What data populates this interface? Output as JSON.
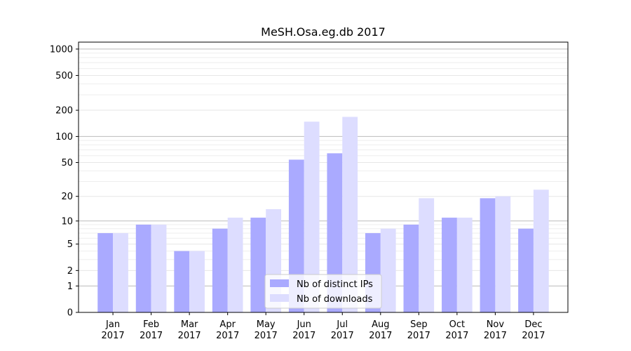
{
  "chart_data": {
    "type": "bar",
    "title": "MeSH.Osa.eg.db 2017",
    "xlabel": "",
    "ylabel": "",
    "yscale": "log(1+y)",
    "ylim": [
      0,
      1200
    ],
    "yticks": [
      0,
      1,
      2,
      5,
      10,
      20,
      50,
      100,
      200,
      500,
      1000
    ],
    "categories": [
      "Jan\n2017",
      "Feb\n2017",
      "Mar\n2017",
      "Apr\n2017",
      "May\n2017",
      "Jun\n2017",
      "Jul\n2017",
      "Aug\n2017",
      "Sep\n2017",
      "Oct\n2017",
      "Nov\n2017",
      "Dec\n2017"
    ],
    "category_lines": [
      [
        "Jan",
        "2017"
      ],
      [
        "Feb",
        "2017"
      ],
      [
        "Mar",
        "2017"
      ],
      [
        "Apr",
        "2017"
      ],
      [
        "May",
        "2017"
      ],
      [
        "Jun",
        "2017"
      ],
      [
        "Jul",
        "2017"
      ],
      [
        "Aug",
        "2017"
      ],
      [
        "Sep",
        "2017"
      ],
      [
        "Oct",
        "2017"
      ],
      [
        "Nov",
        "2017"
      ],
      [
        "Dec",
        "2017"
      ]
    ],
    "series": [
      {
        "name": "Nb of distinct IPs",
        "color": "#aaaaff",
        "values": [
          7,
          9,
          4,
          8,
          11,
          54,
          64,
          7,
          9,
          11,
          19,
          8
        ]
      },
      {
        "name": "Nb of downloads",
        "color": "#ddddff",
        "values": [
          7,
          9,
          4,
          11,
          14,
          148,
          168,
          8,
          19,
          11,
          20,
          24
        ]
      }
    ],
    "grid": true,
    "legend_position": "bottom-center"
  }
}
